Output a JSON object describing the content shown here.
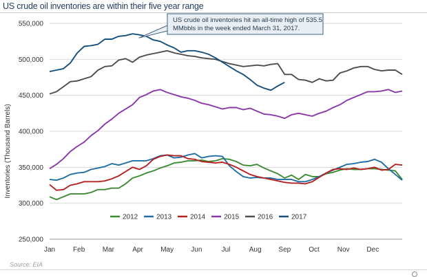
{
  "header": {
    "title": "US crude oil inventories are within their five year range"
  },
  "source": "Source: EIA",
  "colors": {
    "2012": "#3c8b32",
    "2013": "#1f6ea3",
    "2014": "#b42121",
    "2015": "#8b36a8",
    "2016": "#4d4d4d",
    "2017": "#14507e",
    "callout_bg": "#e8eef3",
    "callout_border": "#3b5f7f",
    "grid": "#d9d9d9"
  },
  "chart_data": {
    "type": "line",
    "title": "US crude oil inventories are within their five year range",
    "xlabel": "",
    "ylabel": "Inventories (Thousand  Barrels)",
    "x_ticks": [
      "Jan",
      "Feb",
      "Mar",
      "Apr",
      "May",
      "Jun",
      "Jul",
      "Aug",
      "Sep",
      "Oct",
      "Nov",
      "Dec"
    ],
    "x_range": [
      0,
      51
    ],
    "ylim": [
      250000,
      550000
    ],
    "y_ticks": [
      250000,
      300000,
      350000,
      400000,
      450000,
      500000,
      550000
    ],
    "y_tick_labels": [
      "250,000",
      "300,000",
      "350,000",
      "400,000",
      "450,000",
      "500,000",
      "550,000"
    ],
    "grid": "horizontal",
    "legend": "bottom-center",
    "annotation": {
      "text_lines": [
        "US crude oil inventories hit an all-time high of 535.5",
        "MMbbls in the week ended March 31, 2017."
      ],
      "points_to": {
        "x": 12.5,
        "y": 535500
      }
    },
    "series": [
      {
        "name": "2012",
        "values": [
          309000,
          305000,
          309000,
          313000,
          313000,
          313000,
          315000,
          319000,
          319000,
          321000,
          321000,
          327000,
          335000,
          338000,
          342000,
          345000,
          349000,
          352000,
          356000,
          357000,
          359000,
          359000,
          360000,
          358000,
          359000,
          362000,
          361000,
          358000,
          353000,
          352000,
          354000,
          349000,
          345000,
          341000,
          335000,
          339000,
          333000,
          340000,
          337000,
          337000,
          341000,
          343000,
          346000,
          348000,
          347000,
          347000,
          348000,
          348000,
          347000,
          346000,
          345000,
          333000
        ]
      },
      {
        "name": "2013",
        "values": [
          333000,
          332000,
          335000,
          340000,
          342000,
          343000,
          347000,
          349000,
          351000,
          355000,
          353000,
          356000,
          359000,
          359000,
          359000,
          362000,
          366000,
          367000,
          363000,
          364000,
          367000,
          369000,
          363000,
          365000,
          366000,
          365000,
          352000,
          344000,
          337000,
          335000,
          336000,
          335000,
          335000,
          333000,
          333000,
          333000,
          330000,
          330000,
          333000,
          337000,
          342000,
          346000,
          350000,
          354000,
          355000,
          357000,
          358000,
          361000,
          357000,
          348000,
          340000,
          332000
        ]
      },
      {
        "name": "2014",
        "values": [
          326000,
          318000,
          319000,
          325000,
          327000,
          330000,
          330000,
          330000,
          331000,
          334000,
          338000,
          344000,
          350000,
          347000,
          352000,
          361000,
          365000,
          367000,
          366000,
          366000,
          362000,
          361000,
          358000,
          357000,
          356000,
          357000,
          354000,
          350000,
          345000,
          340000,
          337000,
          335000,
          333000,
          331000,
          329000,
          328000,
          328000,
          327000,
          330000,
          336000,
          342000,
          347000,
          348000,
          347000,
          349000,
          347000,
          348000,
          350000,
          346000,
          347000,
          354000,
          353000
        ]
      },
      {
        "name": "2015",
        "values": [
          348000,
          354000,
          362000,
          372000,
          379000,
          385000,
          394000,
          401000,
          410000,
          417000,
          425000,
          431000,
          437000,
          447000,
          451000,
          456000,
          458000,
          454000,
          451000,
          448000,
          446000,
          443000,
          439000,
          437000,
          434000,
          431000,
          433000,
          433000,
          430000,
          432000,
          428000,
          424000,
          423000,
          421000,
          418000,
          423000,
          425000,
          423000,
          421000,
          425000,
          428000,
          433000,
          437000,
          443000,
          447000,
          451000,
          455000,
          455000,
          456000,
          458000,
          454000,
          456000
        ]
      },
      {
        "name": "2016",
        "values": [
          452000,
          455000,
          462000,
          469000,
          470000,
          473000,
          476000,
          485000,
          490000,
          491000,
          499000,
          501000,
          496000,
          503000,
          506000,
          508000,
          510000,
          512000,
          509000,
          507000,
          505000,
          504000,
          502000,
          501000,
          500000,
          497000,
          494000,
          492000,
          490000,
          491000,
          492000,
          491000,
          493000,
          494000,
          479000,
          479000,
          472000,
          471000,
          468000,
          473000,
          470000,
          471000,
          481000,
          484000,
          488000,
          490000,
          490000,
          486000,
          484000,
          485000,
          485000,
          479000
        ]
      },
      {
        "name": "2017",
        "values": [
          483000,
          485000,
          487000,
          495000,
          509000,
          518000,
          519000,
          521000,
          528000,
          528000,
          532000,
          533000,
          535500,
          534000,
          532000,
          527000,
          525000,
          520000,
          516000,
          510000,
          512000,
          512000,
          510000,
          507000,
          502000,
          496000,
          490000,
          484000,
          479000,
          472000,
          464000,
          460000,
          457000,
          463000,
          468000
        ]
      }
    ]
  }
}
